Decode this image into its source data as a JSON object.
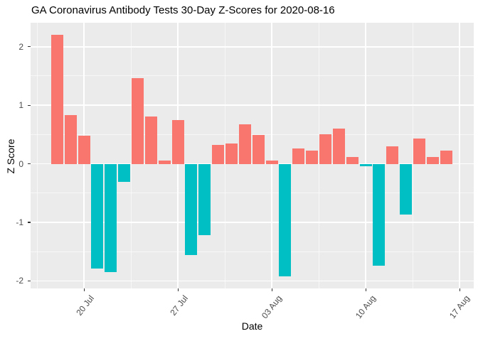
{
  "title": "GA Coronavirus Antibody Tests 30-Day Z-Scores for 2020-08-16",
  "chart_data": {
    "type": "bar",
    "title": "GA Coronavirus Antibody Tests 30-Day Z-Scores for 2020-08-16",
    "xlabel": "Date",
    "ylabel": "Z Score",
    "x": [
      "2020-07-18",
      "2020-07-19",
      "2020-07-20",
      "2020-07-21",
      "2020-07-22",
      "2020-07-23",
      "2020-07-24",
      "2020-07-25",
      "2020-07-26",
      "2020-07-27",
      "2020-07-28",
      "2020-07-29",
      "2020-07-30",
      "2020-07-31",
      "2020-08-01",
      "2020-08-02",
      "2020-08-03",
      "2020-08-04",
      "2020-08-05",
      "2020-08-06",
      "2020-08-07",
      "2020-08-08",
      "2020-08-09",
      "2020-08-10",
      "2020-08-11",
      "2020-08-12",
      "2020-08-13",
      "2020-08-14",
      "2020-08-15",
      "2020-08-16"
    ],
    "values": [
      2.2,
      0.83,
      0.48,
      -1.79,
      -1.85,
      -0.31,
      1.46,
      0.81,
      0.06,
      0.75,
      -1.56,
      -1.22,
      0.32,
      0.35,
      0.67,
      0.49,
      0.05,
      -1.92,
      0.26,
      0.22,
      0.51,
      0.6,
      0.12,
      -0.04,
      -1.74,
      0.3,
      -0.87,
      0.43,
      0.12,
      0.22
    ],
    "ylim": [
      -2.13,
      2.41
    ],
    "y_major_ticks": [
      {
        "label": "2",
        "value": 2
      },
      {
        "label": "1",
        "value": 1
      },
      {
        "label": "0",
        "value": 0
      },
      {
        "label": "-1",
        "value": -1
      },
      {
        "label": "-2",
        "value": -2
      }
    ],
    "y_minor_ticks": [
      1.5,
      0.5,
      -0.5,
      -1.5
    ],
    "x_ticks": [
      {
        "label": "20 Jul",
        "day": 2
      },
      {
        "label": "27 Jul",
        "day": 9
      },
      {
        "label": "03 Aug",
        "day": 16
      },
      {
        "label": "10 Aug",
        "day": 23
      },
      {
        "label": "17 Aug",
        "day": 30
      }
    ],
    "x_minor_days": [
      -1.5,
      5.5,
      12.5,
      19.5,
      26.5
    ],
    "colors": {
      "positive": "#F8766D",
      "negative": "#00BFC4",
      "panel_bg": "#EBEBEB",
      "grid": "#FFFFFF",
      "axis_text": "#4D4D4D",
      "tick_mark": "#333333"
    },
    "grid": true,
    "legend": "none"
  }
}
